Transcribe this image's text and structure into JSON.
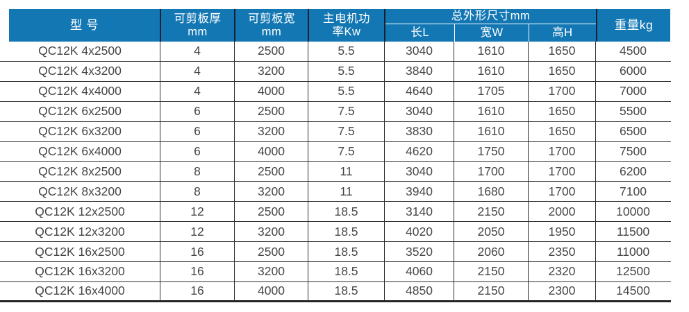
{
  "colors": {
    "header_bg": "#1377b4",
    "header_text": "#ffffff",
    "body_text": "#464646",
    "grid_line": "#2d2d2d",
    "header_divider": "#15222e",
    "group_divider": "#ffffff"
  },
  "table": {
    "header": {
      "model": "型 号",
      "thickness": [
        "可剪板厚",
        "mm"
      ],
      "width": [
        "可剪板宽",
        "mm"
      ],
      "power": [
        "主电机功",
        "率Kw"
      ],
      "dims_group": "总外形尺寸mm",
      "dim_length": "长L",
      "dim_width": "宽W",
      "dim_height": "高H",
      "weight": "重量kg"
    },
    "rows": [
      {
        "model": "QC12K 4x2500",
        "thickness": "4",
        "width": "2500",
        "power": "5.5",
        "length": "3040",
        "overall_width": "1610",
        "height": "1650",
        "weight": "4500"
      },
      {
        "model": "QC12K 4x3200",
        "thickness": "4",
        "width": "3200",
        "power": "5.5",
        "length": "3840",
        "overall_width": "1610",
        "height": "1650",
        "weight": "6000"
      },
      {
        "model": "QC12K 4x4000",
        "thickness": "4",
        "width": "4000",
        "power": "5.5",
        "length": "4640",
        "overall_width": "1705",
        "height": "1700",
        "weight": "7000"
      },
      {
        "model": "QC12K 6x2500",
        "thickness": "6",
        "width": "2500",
        "power": "7.5",
        "length": "3040",
        "overall_width": "1610",
        "height": "1650",
        "weight": "5500"
      },
      {
        "model": "QC12K 6x3200",
        "thickness": "6",
        "width": "3200",
        "power": "7.5",
        "length": "3830",
        "overall_width": "1610",
        "height": "1650",
        "weight": "6500"
      },
      {
        "model": "QC12K 6x4000",
        "thickness": "6",
        "width": "4000",
        "power": "7.5",
        "length": "4620",
        "overall_width": "1750",
        "height": "1700",
        "weight": "7500"
      },
      {
        "model": "QC12K 8x2500",
        "thickness": "8",
        "width": "2500",
        "power": "11",
        "length": "3040",
        "overall_width": "1700",
        "height": "1700",
        "weight": "6200"
      },
      {
        "model": "QC12K 8x3200",
        "thickness": "8",
        "width": "3200",
        "power": "11",
        "length": "3940",
        "overall_width": "1680",
        "height": "1700",
        "weight": "7100"
      },
      {
        "model": "QC12K 12x2500",
        "thickness": "12",
        "width": "2500",
        "power": "18.5",
        "length": "3140",
        "overall_width": "2150",
        "height": "2000",
        "weight": "10000"
      },
      {
        "model": "QC12K 12x3200",
        "thickness": "12",
        "width": "3200",
        "power": "18.5",
        "length": "4020",
        "overall_width": "2050",
        "height": "1950",
        "weight": "11500"
      },
      {
        "model": "QC12K 16x2500",
        "thickness": "16",
        "width": "2500",
        "power": "18.5",
        "length": "3520",
        "overall_width": "2060",
        "height": "2350",
        "weight": "11000"
      },
      {
        "model": "QC12K 16x3200",
        "thickness": "16",
        "width": "3200",
        "power": "18.5",
        "length": "4060",
        "overall_width": "2150",
        "height": "2320",
        "weight": "12500"
      },
      {
        "model": "QC12K 16x4000",
        "thickness": "16",
        "width": "4000",
        "power": "18.5",
        "length": "4850",
        "overall_width": "2150",
        "height": "2300",
        "weight": "14500"
      }
    ]
  }
}
